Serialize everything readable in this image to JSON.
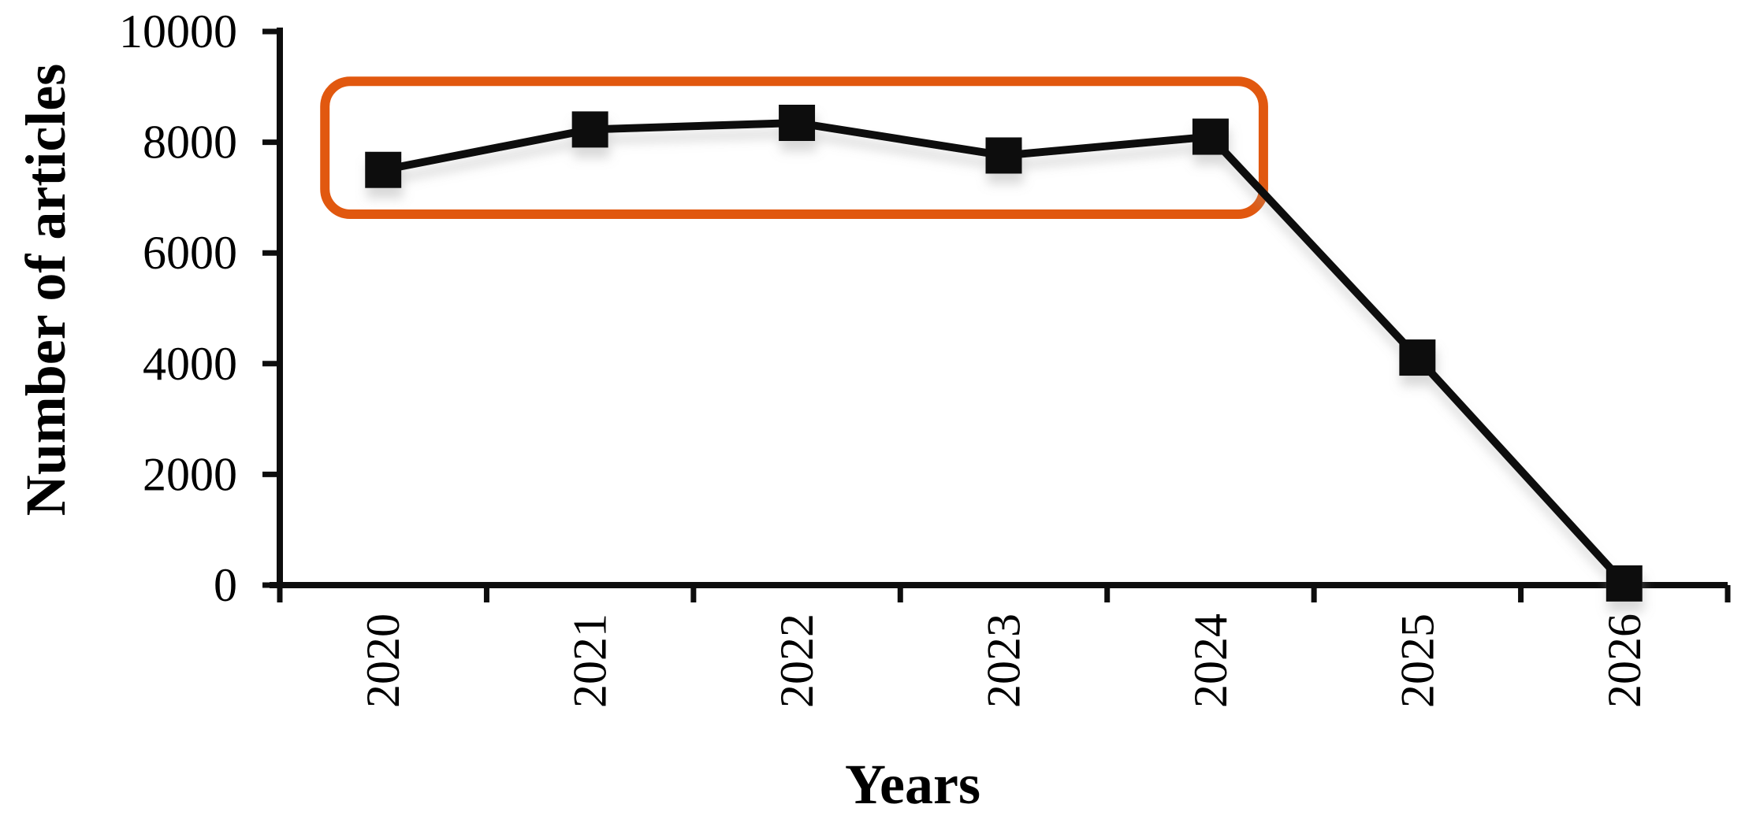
{
  "figure": {
    "background_color": "#ffffff",
    "text_color": "#000000"
  },
  "chart_data": {
    "type": "line",
    "title": "",
    "xlabel": "Years",
    "ylabel": "Number of articles",
    "categories": [
      "2020",
      "2021",
      "2022",
      "2023",
      "2024",
      "2025",
      "2026"
    ],
    "series": [
      {
        "name": "Number of articles",
        "values": [
          7500,
          8230,
          8350,
          7760,
          8100,
          4110,
          30
        ]
      }
    ],
    "ylim": [
      0,
      10000
    ],
    "yticks": [
      0,
      2000,
      4000,
      6000,
      8000,
      10000
    ],
    "ytick_labels": [
      "0",
      "2000",
      "4000",
      "6000",
      "8000",
      "10000"
    ],
    "xtick_label_rotation": -90,
    "grid": false,
    "legend": false,
    "line_color": "#0d0d0d",
    "line_width": 10,
    "marker": "square",
    "marker_color": "#0d0d0d",
    "marker_size": 46,
    "annotation_highlight": {
      "shape": "rounded_rect",
      "from_category": "2020",
      "to_category": "2024",
      "y_range": [
        6700,
        9100
      ],
      "color": "#e1580f",
      "stroke_width": 12,
      "corner_radius": 32,
      "x_pad": [
        74,
        67
      ]
    }
  }
}
